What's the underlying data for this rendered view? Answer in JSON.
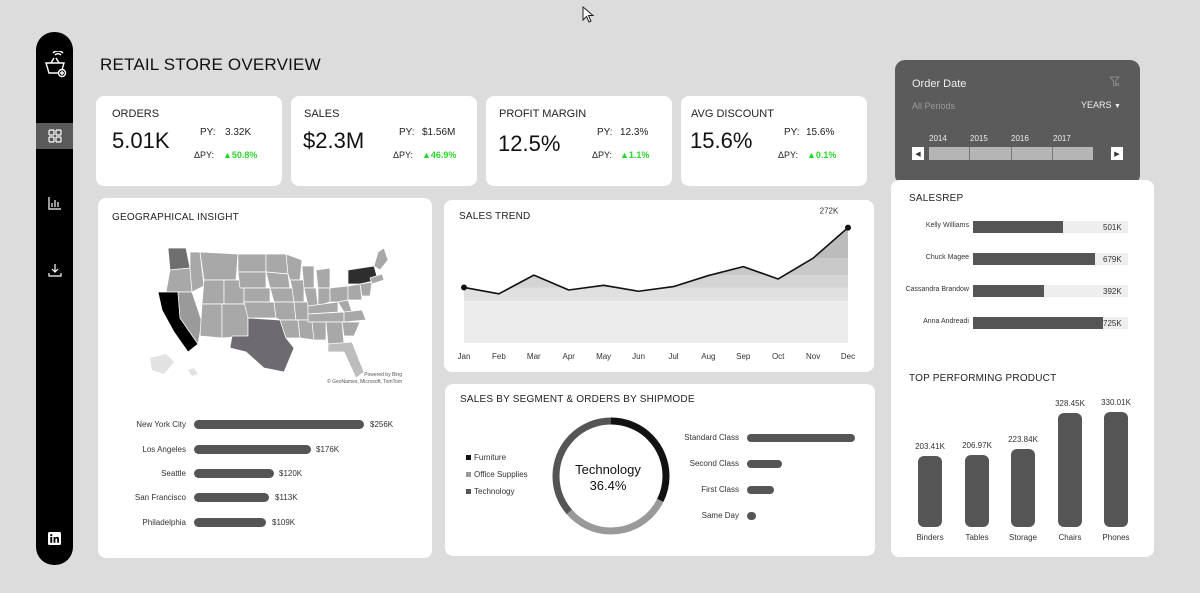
{
  "page_title": "RETAIL STORE OVERVIEW",
  "kpis": [
    {
      "label": "ORDERS",
      "value": "5.01K",
      "py_label": "PY:",
      "py_value": "3.32K",
      "dpy_label": "ΔPY:",
      "dpy_value": "▲50.8%"
    },
    {
      "label": "SALES",
      "value": "$2.3M",
      "py_label": "PY:",
      "py_value": "$1.56M",
      "dpy_label": "ΔPY:",
      "dpy_value": "▲46.9%"
    },
    {
      "label": "PROFIT MARGIN",
      "value": "12.5%",
      "py_label": "PY:",
      "py_value": "12.3%",
      "dpy_label": "ΔPY:",
      "dpy_value": "▲1.1%"
    },
    {
      "label": "AVG DISCOUNT",
      "value": "15.6%",
      "py_label": "PY:",
      "py_value": "15.6%",
      "dpy_label": "ΔPY:",
      "dpy_value": "▲0.1%"
    }
  ],
  "date_slicer": {
    "title": "Order Date",
    "periods": "All Periods",
    "unit": "YEARS",
    "years": [
      "2014",
      "2015",
      "2016",
      "2017"
    ]
  },
  "geo": {
    "title": "GEOGRAPHICAL  INSIGHT",
    "credit_line1": "Powered by Bing",
    "credit_line2": "© GeoNames, Microsoft, TomTom",
    "cities": [
      {
        "name": "New York City",
        "value": 256,
        "label": "$256K"
      },
      {
        "name": "Los Angeles",
        "value": 176,
        "label": "$176K"
      },
      {
        "name": "Seattle",
        "value": 120,
        "label": "$120K"
      },
      {
        "name": "San Francisco",
        "value": 113,
        "label": "$113K"
      },
      {
        "name": "Philadelphia",
        "value": 109,
        "label": "$109K"
      }
    ]
  },
  "trend": {
    "title": "SALES TREND",
    "peak_label": "272K"
  },
  "segment": {
    "title": "SALES BY SEGMENT & ORDERS BY SHIPMODE",
    "center_name": "Technology",
    "center_pct": "36.4%",
    "legend": [
      "Furniture",
      "Office Supplies",
      "Technology"
    ],
    "shipmodes": [
      {
        "name": "Standard Class",
        "value": 1.0
      },
      {
        "name": "Second Class",
        "value": 0.32
      },
      {
        "name": "First Class",
        "value": 0.25
      },
      {
        "name": "Same Day",
        "value": 0.08
      }
    ]
  },
  "salesrep": {
    "title": "SALESREP",
    "reps": [
      {
        "name": "Kelly Williams",
        "fill": 0.58,
        "label": "501K"
      },
      {
        "name": "Chuck Magee",
        "fill": 0.79,
        "label": "679K"
      },
      {
        "name": "Cassandra Brandow",
        "fill": 0.46,
        "label": "392K"
      },
      {
        "name": "Anna Andreadi",
        "fill": 0.84,
        "label": "725K"
      }
    ]
  },
  "products": {
    "title": "TOP PERFORMING PRODUCT"
  },
  "chart_data": [
    {
      "type": "area",
      "title": "SALES TREND",
      "categories": [
        "Jan",
        "Feb",
        "Mar",
        "Apr",
        "May",
        "Jun",
        "Jul",
        "Aug",
        "Sep",
        "Oct",
        "Nov",
        "Dec"
      ],
      "values": [
        131,
        116,
        160,
        125,
        136,
        122,
        133,
        159,
        180,
        151,
        200,
        272
      ],
      "ylim": [
        0,
        290
      ],
      "annotations": [
        "272K"
      ]
    },
    {
      "type": "bar",
      "title": "TOP PERFORMING PRODUCT",
      "categories": [
        "Binders",
        "Tables",
        "Storage",
        "Chairs",
        "Phones"
      ],
      "values": [
        203.41,
        206.97,
        223.84,
        328.45,
        330.01
      ],
      "labels": [
        "203.41K",
        "206.97K",
        "223.84K",
        "328.45K",
        "330.01K"
      ]
    },
    {
      "type": "pie",
      "title": "SALES BY SEGMENT",
      "categories": [
        "Furniture",
        "Office Supplies",
        "Technology"
      ],
      "values": [
        32.3,
        31.3,
        36.4
      ],
      "colors": [
        "#111111",
        "#999999",
        "#555555"
      ]
    }
  ]
}
